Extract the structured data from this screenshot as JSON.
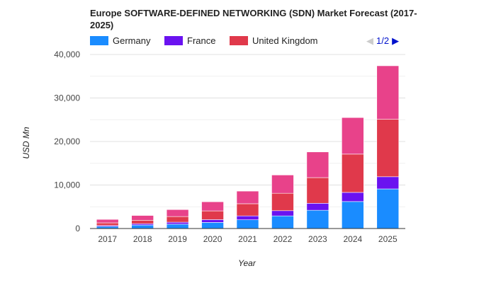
{
  "chart_data": {
    "type": "bar",
    "stacked": true,
    "title": "Europe SOFTWARE-DEFINED NETWORKING (SDN) Market Forecast (2017-2025)",
    "xlabel": "Year",
    "ylabel": "USD Mn",
    "ylim": [
      0,
      40000
    ],
    "yticks": [
      0,
      10000,
      20000,
      30000,
      40000
    ],
    "ytick_labels": [
      "0",
      "10,000",
      "20,000",
      "30,000",
      "40,000"
    ],
    "grid": true,
    "legend_position": "top",
    "categories": [
      "2017",
      "2018",
      "2019",
      "2020",
      "2021",
      "2022",
      "2023",
      "2024",
      "2025"
    ],
    "series": [
      {
        "name": "Germany",
        "color": "#1a8cff",
        "values": [
          500,
          800,
          1000,
          1400,
          2000,
          2900,
          4200,
          6200,
          9100
        ]
      },
      {
        "name": "France",
        "color": "#6a12f0",
        "values": [
          200,
          300,
          450,
          650,
          900,
          1200,
          1600,
          2100,
          2800
        ]
      },
      {
        "name": "United Kingdom",
        "color": "#e0394b",
        "values": [
          600,
          800,
          1300,
          2000,
          2800,
          4000,
          5900,
          8800,
          13200
        ]
      },
      {
        "name": "",
        "color": "#e8428a",
        "values": [
          800,
          1100,
          1600,
          2100,
          2900,
          4200,
          5900,
          8400,
          12300
        ]
      }
    ]
  },
  "legend": {
    "items": [
      "Germany",
      "France",
      "United Kingdom"
    ]
  },
  "pager": {
    "label": "1/2",
    "prev_icon": "triangle-left-icon",
    "next_icon": "triangle-right-icon"
  }
}
